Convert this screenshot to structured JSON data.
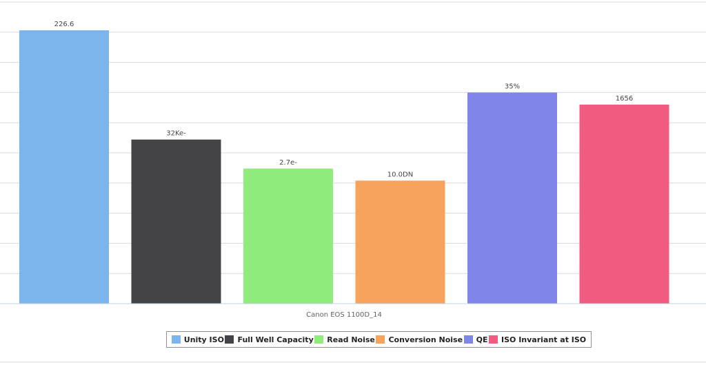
{
  "chart_data": {
    "type": "bar",
    "categories": [
      "Canon EOS 1100D_14"
    ],
    "series": [
      {
        "name": "Unity ISO",
        "value": 226.6,
        "label": "226.6",
        "color": "#7cb5ec"
      },
      {
        "name": "Full Well Capacity",
        "value": 136,
        "label": "32Ke-",
        "color": "#434348"
      },
      {
        "name": "Read Noise",
        "value": 112,
        "label": "2.7e-",
        "color": "#90ed7d"
      },
      {
        "name": "Conversion Noise",
        "value": 102,
        "label": "10.0DN",
        "color": "#f7a35c"
      },
      {
        "name": "QE",
        "value": 175,
        "label": "35%",
        "color": "#8085e9"
      },
      {
        "name": "ISO Invariant at ISO",
        "value": 165,
        "label": "1656",
        "color": "#f15c80"
      }
    ],
    "ylim": [
      0,
      250
    ],
    "grid": true,
    "legend": "bottom-center"
  }
}
